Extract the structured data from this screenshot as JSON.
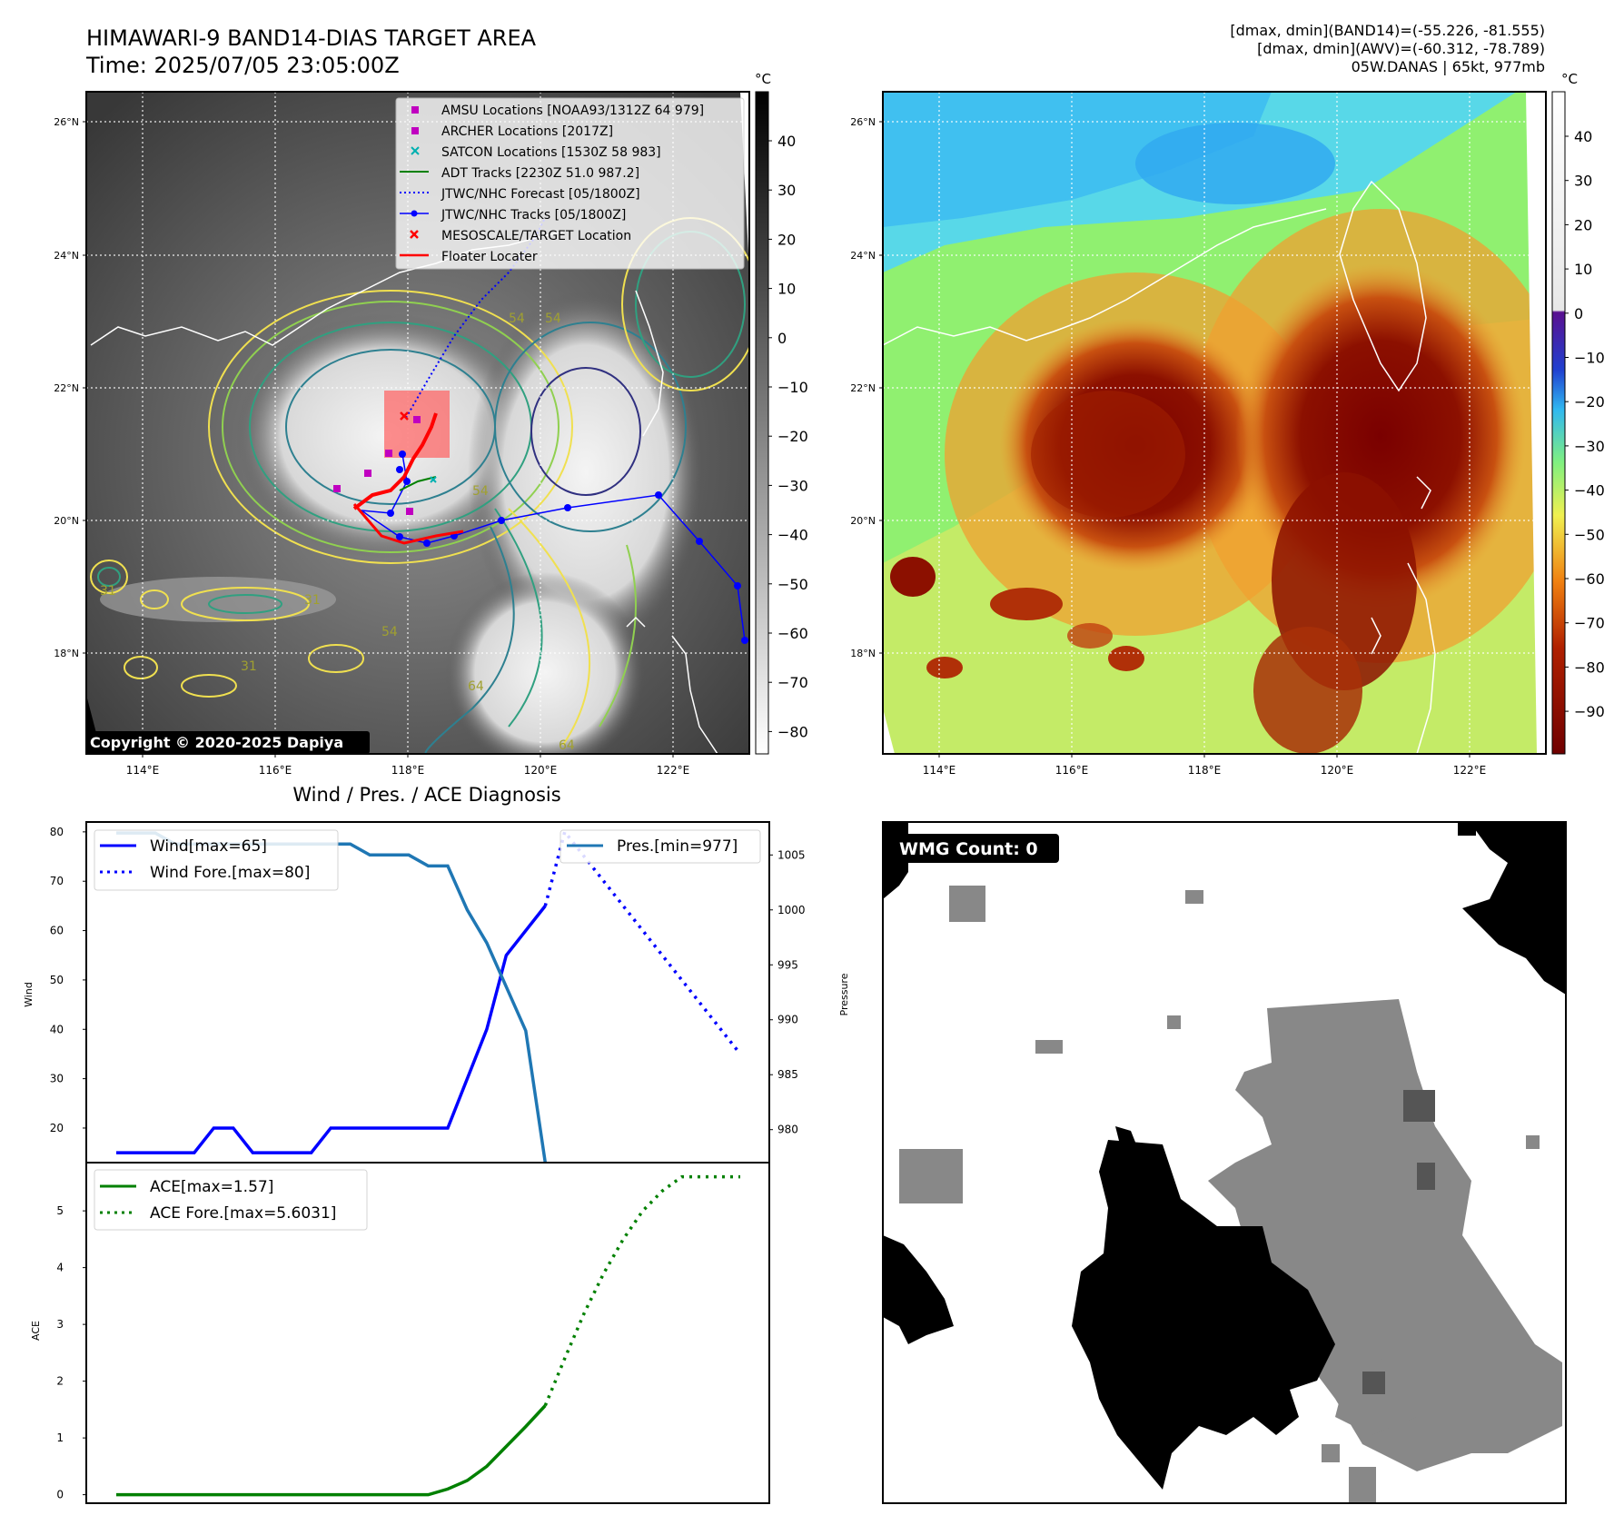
{
  "header": {
    "title_line1": "HIMAWARI-9 BAND14-DIAS TARGET AREA",
    "title_line2": "Time: 2025/07/05 23:05:00Z",
    "info_line1": "[dmax, dmin](BAND14)=(-55.226, -81.555)",
    "info_line2": "[dmax, dmin](AWV)=(-60.312, -78.789)",
    "info_line3": "05W.DANAS | 65kt, 977mb"
  },
  "map_common": {
    "lon_ticks": [
      "114°E",
      "116°E",
      "118°E",
      "120°E",
      "122°E"
    ],
    "lat_ticks": [
      "26°N",
      "24°N",
      "22°N",
      "20°N",
      "18°N"
    ],
    "colorbar_unit": "°C"
  },
  "ir_panel": {
    "colorbar_ticks": [
      "40",
      "30",
      "20",
      "10",
      "0",
      "−10",
      "−20",
      "−30",
      "−40",
      "−50",
      "−60",
      "−70",
      "−80"
    ],
    "legend": [
      "AMSU Locations [NOAA93/1312Z 64 979]",
      "ARCHER Locations [2017Z]",
      "SATCON Locations [1530Z 58 983]",
      "ADT Tracks [2230Z 51.0 987.2]",
      "JTWC/NHC Forecast [05/1800Z]",
      "JTWC/NHC Tracks [05/1800Z]",
      "MESOSCALE/TARGET Location",
      "Floater Locater"
    ],
    "contour_labels": [
      "54",
      "54",
      "31",
      "31",
      "31",
      "64",
      "54",
      "64",
      "54"
    ],
    "copyright": "Copyright © 2020-2025 Dapiya",
    "colors": {
      "amsu": "#c000c0",
      "archer": "#c000c0",
      "satcon": "#00b0b0",
      "adt": "#008000",
      "jtwc": "#0000ff",
      "target": "#ff0000"
    }
  },
  "awv_panel": {
    "colorbar_ticks": [
      "40",
      "30",
      "20",
      "10",
      "0",
      "−10",
      "−20",
      "−30",
      "−40",
      "−50",
      "−60",
      "−70",
      "−80",
      "−90"
    ]
  },
  "diag_title": "Wind / Pres. / ACE Diagnosis",
  "wmg_label": "WMG Count: 0",
  "chart_data": [
    {
      "type": "line",
      "title": "Wind / Pres. / ACE Diagnosis",
      "ylabel": "Wind",
      "y2label": "Pressure",
      "ylim": [
        13,
        82
      ],
      "y2lim": [
        977,
        1008
      ],
      "yticks": [
        "80",
        "70",
        "60",
        "50",
        "40",
        "30",
        "20"
      ],
      "y2ticks": [
        "1005",
        "1000",
        "995",
        "990",
        "985",
        "980"
      ],
      "series": [
        {
          "name": "Wind[max=65]",
          "style": "solid",
          "color": "#0000ff",
          "x": [
            0,
            1,
            2,
            3,
            4,
            5,
            6,
            7,
            8,
            9,
            10,
            11,
            12,
            13,
            14,
            15,
            16,
            17,
            18,
            19,
            20,
            21,
            22
          ],
          "values": [
            15,
            15,
            15,
            15,
            15,
            20,
            20,
            15,
            15,
            15,
            15,
            20,
            20,
            20,
            20,
            20,
            20,
            20,
            30,
            40,
            55,
            60,
            65
          ]
        },
        {
          "name": "Wind Fore.[max=80]",
          "style": "dotted",
          "color": "#0000ff",
          "x": [
            22,
            23,
            24,
            25,
            26,
            27,
            28,
            29,
            30,
            31,
            32
          ],
          "values": [
            65,
            80,
            75,
            70,
            65,
            60,
            55,
            50,
            45,
            40,
            35
          ]
        },
        {
          "name": "Pres.[min=977]",
          "style": "solid",
          "color": "#1f77b4",
          "x": [
            0,
            1,
            2,
            3,
            4,
            5,
            6,
            7,
            8,
            9,
            10,
            11,
            12,
            13,
            14,
            15,
            16,
            17,
            18,
            19,
            20,
            21,
            22
          ],
          "values": [
            1007,
            1007,
            1007,
            1006,
            1006,
            1006,
            1006,
            1006,
            1006,
            1006,
            1006,
            1006,
            1006,
            1005,
            1005,
            1005,
            1004,
            1004,
            1000,
            997,
            993,
            989,
            977
          ]
        }
      ]
    },
    {
      "type": "line",
      "ylabel": "ACE",
      "ylim": [
        -0.15,
        5.85
      ],
      "yticks": [
        "5",
        "4",
        "3",
        "2",
        "1",
        "0"
      ],
      "series": [
        {
          "name": "ACE[max=1.57]",
          "style": "solid",
          "color": "#008000",
          "x": [
            0,
            16,
            17,
            18,
            19,
            20,
            21,
            22
          ],
          "values": [
            0,
            0,
            0.1,
            0.25,
            0.5,
            0.85,
            1.2,
            1.57
          ]
        },
        {
          "name": "ACE Fore.[max=5.6031]",
          "style": "dotted",
          "color": "#008000",
          "x": [
            22,
            23,
            24,
            25,
            26,
            27,
            28,
            29,
            30,
            31,
            32
          ],
          "values": [
            1.57,
            2.4,
            3.2,
            3.9,
            4.5,
            5.0,
            5.35,
            5.6,
            5.6,
            5.6,
            5.6
          ]
        }
      ]
    }
  ]
}
